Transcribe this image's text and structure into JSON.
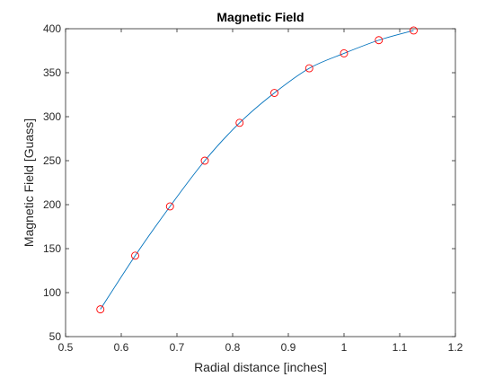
{
  "chart_data": {
    "type": "line",
    "title": "Magnetic Field",
    "xlabel": "Radial distance [inches]",
    "ylabel": "Magnetic Field [Guass]",
    "xlim": [
      0.5,
      1.2
    ],
    "ylim": [
      50,
      400
    ],
    "xticks": [
      0.5,
      0.6,
      0.7,
      0.8,
      0.9,
      1,
      1.1,
      1.2
    ],
    "xtick_labels": [
      "0.5",
      "0.6",
      "0.7",
      "0.8",
      "0.9",
      "1",
      "1.1",
      "1.2"
    ],
    "yticks": [
      50,
      100,
      150,
      200,
      250,
      300,
      350,
      400
    ],
    "ytick_labels": [
      "50",
      "100",
      "150",
      "200",
      "250",
      "300",
      "350",
      "400"
    ],
    "grid": false,
    "series": [
      {
        "style": "markers",
        "marker": "circle",
        "color": "#ff0000",
        "x": [
          0.5625,
          0.625,
          0.6875,
          0.75,
          0.8125,
          0.875,
          0.9375,
          1.0,
          1.0625,
          1.125
        ],
        "y": [
          81,
          142,
          198,
          250,
          293,
          327,
          355,
          372,
          387,
          398
        ]
      },
      {
        "style": "line",
        "color": "#0072bd",
        "x": [
          0.5625,
          0.625,
          0.6875,
          0.75,
          0.8125,
          0.875,
          0.9375,
          1.0,
          1.0625,
          1.125
        ],
        "y": [
          81,
          142,
          198,
          250,
          293,
          327,
          355,
          372,
          387,
          398
        ]
      }
    ]
  }
}
